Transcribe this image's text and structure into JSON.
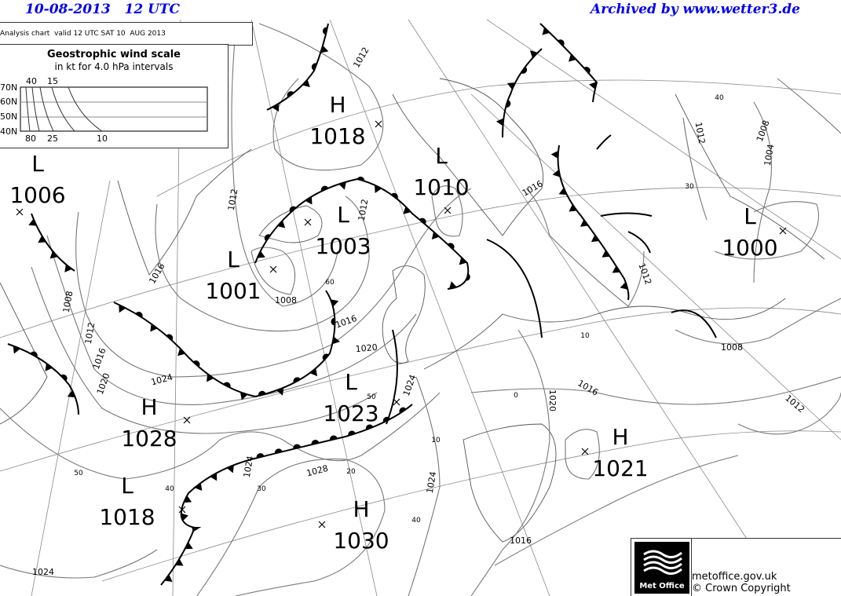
{
  "header": {
    "date_time": "10-08-2013   12 UTC",
    "archive": "Archived by www.wetter3.de",
    "header_color": "#0000ee"
  },
  "chart_info": "Analysis chart  valid 12 UTC SAT 10  AUG 2013",
  "wind_scale": {
    "title": "Geostrophic wind scale",
    "subtitle": "in kt for 4.0 hPa intervals",
    "latitudes": [
      "70N",
      "60N",
      "50N",
      "40N"
    ],
    "top_labels": [
      "40",
      "15"
    ],
    "bottom_labels": [
      "80",
      "25",
      "10"
    ]
  },
  "pressure_centers": [
    {
      "type": "L",
      "value": "1006"
    },
    {
      "type": "H",
      "value": "1018"
    },
    {
      "type": "L",
      "value": "1010"
    },
    {
      "type": "L",
      "value": "1003"
    },
    {
      "type": "L",
      "value": "1001"
    },
    {
      "type": "L",
      "value": "1000"
    },
    {
      "type": "H",
      "value": "1028"
    },
    {
      "type": "L",
      "value": "1023"
    },
    {
      "type": "H",
      "value": "1021"
    },
    {
      "type": "L",
      "value": "1018"
    },
    {
      "type": "H",
      "value": "1030"
    }
  ],
  "isobar_labels": [
    "1012",
    "1012",
    "1016",
    "1008",
    "1012",
    "1016",
    "1020",
    "1024",
    "1008",
    "1012",
    "1016",
    "1020",
    "1024",
    "1028",
    "1024",
    "1024",
    "1020",
    "1016",
    "1016",
    "1012",
    "1012",
    "1008",
    "1004",
    "1008",
    "1012",
    "1016",
    "1024"
  ],
  "grid_labels": [
    "40",
    "30",
    "60",
    "50",
    "10",
    "20",
    "30",
    "40",
    "50",
    "40",
    "10",
    "0"
  ],
  "footer": {
    "logo_text": "Met Office",
    "site": "metoffice.gov.uk",
    "copyright": "© Crown Copyright"
  }
}
